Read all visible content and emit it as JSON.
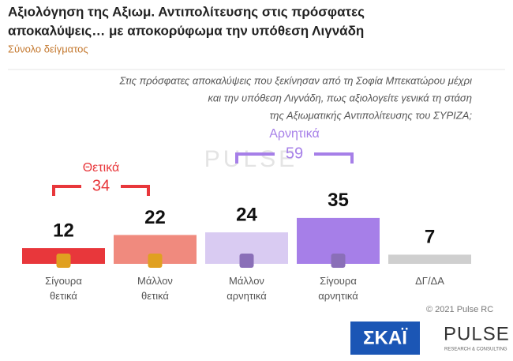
{
  "chart_data": {
    "type": "bar",
    "title": [
      "Αξιολόγηση της Αξιωμ. Αντιπολίτευσης στις πρόσφατες",
      "αποκαλύψεις… με αποκορύφωμα την υπόθεση Λιγνάδη"
    ],
    "subtitle": "Σύνολο δείγματος",
    "question": [
      "Στις πρόσφατες αποκαλύψεις που ξεκίνησαν από τη Σοφία Μπεκατώρου μέχρι",
      "και την υπόθεση Λιγνάδη, πως αξιολογείτε γενικά τη στάση",
      "της Αξιωματικής Αντιπολίτευσης του ΣΥΡΙΖΑ;"
    ],
    "categories": [
      "Σίγουρα θετικά",
      "Μάλλον θετικά",
      "Μάλλον αρνητικά",
      "Σίγουρα αρνητικά",
      "ΔΓ/ΔΑ"
    ],
    "values": [
      12,
      22,
      24,
      35,
      7
    ],
    "colors": [
      "#e8373b",
      "#f08a7e",
      "#d9cbf2",
      "#a67fe8",
      "#cfcfcf"
    ],
    "groups": [
      {
        "name": "Θετικά",
        "value": 34,
        "color": "#e8373b"
      },
      {
        "name": "Αρνητικά",
        "value": 59,
        "color": "#a67fe8"
      }
    ],
    "copyright": "© 2021 Pulse RC",
    "watermark": "PULSE",
    "logos": [
      "ΣΚΑΪ",
      "PULSE",
      "RESEARCH & CONSULTING"
    ]
  }
}
